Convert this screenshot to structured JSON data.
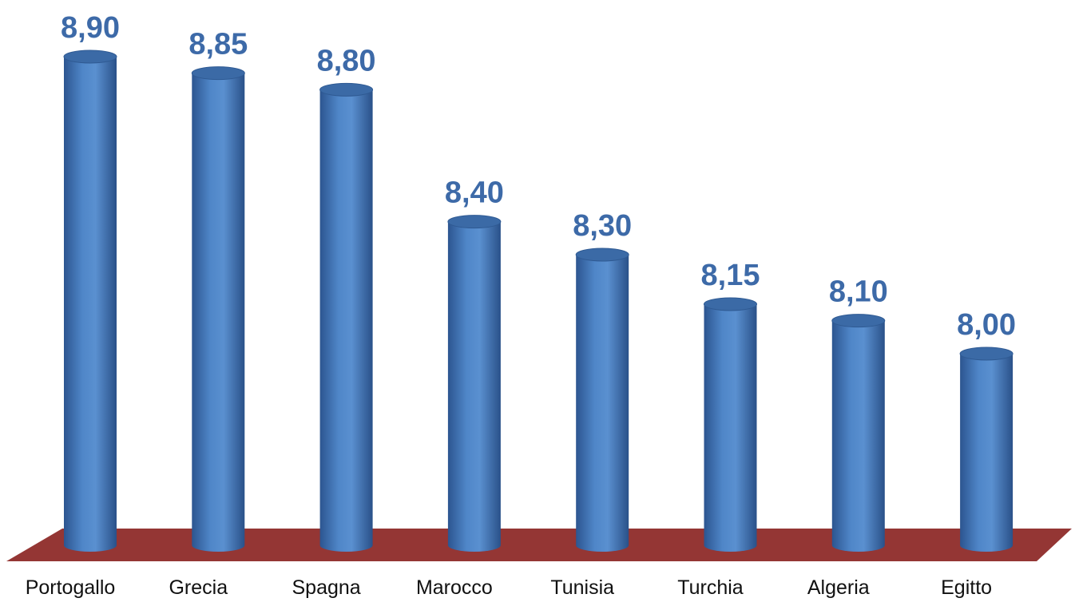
{
  "chart_data": {
    "type": "bar",
    "style": "3d-cylinder",
    "categories": [
      "Portogallo",
      "Grecia",
      "Spagna",
      "Marocco",
      "Tunisia",
      "Turchia",
      "Algeria",
      "Egitto"
    ],
    "values": [
      8.9,
      8.85,
      8.8,
      8.4,
      8.3,
      8.15,
      8.1,
      8.0
    ],
    "value_labels": [
      "8,90",
      "8,85",
      "8,80",
      "8,40",
      "8,30",
      "8,15",
      "8,10",
      "8,00"
    ],
    "title": "",
    "xlabel": "",
    "ylabel": "",
    "grid": false,
    "legend": "none",
    "colors": {
      "bar": "#4a7fc1",
      "bar_dark": "#2c5590",
      "bar_top": "#3b6aa6",
      "floor": "#943634",
      "value_label": "#3d6aa8",
      "tick_label": "#111111"
    }
  }
}
